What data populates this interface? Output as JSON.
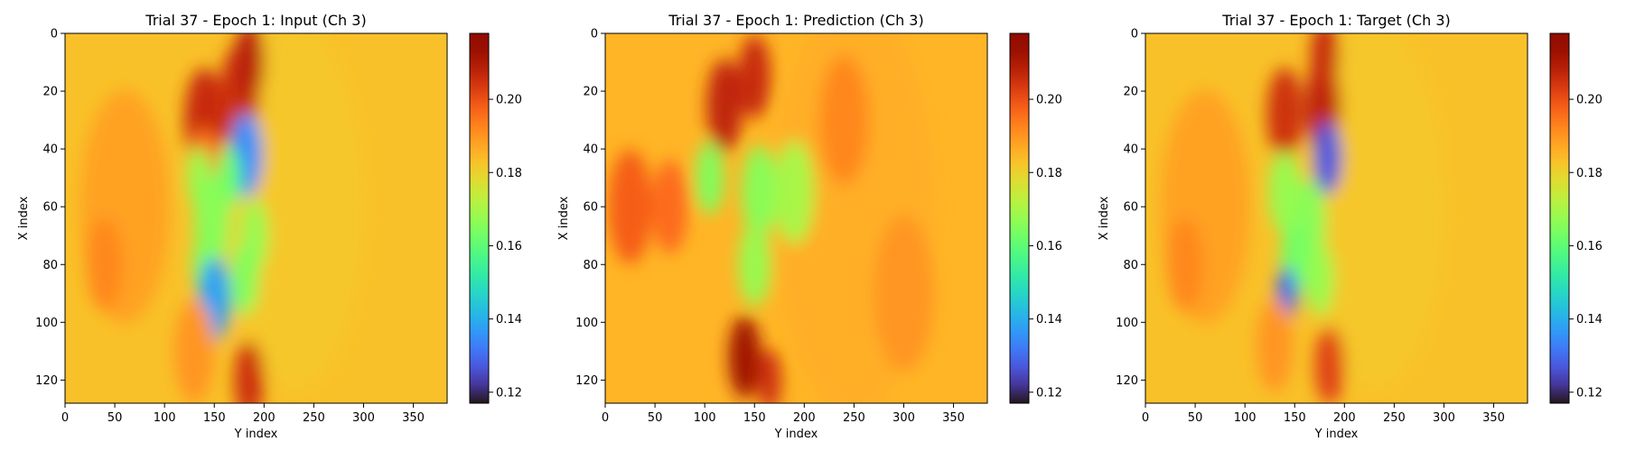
{
  "chart_data": [
    {
      "type": "heatmap",
      "title": "Trial 37 - Epoch 1: Input (Ch 3)",
      "xlabel": "Y index",
      "ylabel": "X index",
      "xlim": [
        0,
        384
      ],
      "ylim": [
        128,
        0
      ],
      "xticks": [
        0,
        50,
        100,
        150,
        200,
        250,
        300,
        350
      ],
      "yticks": [
        0,
        20,
        40,
        60,
        80,
        100,
        120
      ],
      "colormap": "turbo",
      "vmin": 0.117,
      "vmax": 0.218,
      "colorbar_ticks": [
        0.12,
        0.14,
        0.16,
        0.18,
        0.2
      ],
      "colorbar_tick_labels": [
        "0.12",
        "0.14",
        "0.16",
        "0.18",
        "0.20"
      ],
      "background_value": 0.183,
      "features": [
        {
          "x": 230,
          "y": 60,
          "r": 70,
          "value": 0.182
        },
        {
          "x": 60,
          "y": 60,
          "r": 45,
          "value": 0.188
        },
        {
          "x": 140,
          "y": 30,
          "r": 20,
          "value": 0.206
        },
        {
          "x": 175,
          "y": 22,
          "r": 20,
          "value": 0.205
        },
        {
          "x": 185,
          "y": 10,
          "r": 15,
          "value": 0.208
        },
        {
          "x": 140,
          "y": 45,
          "r": 14,
          "value": 0.195
        },
        {
          "x": 182,
          "y": 42,
          "r": 16,
          "value": 0.135
        },
        {
          "x": 135,
          "y": 50,
          "r": 12,
          "value": 0.168
        },
        {
          "x": 165,
          "y": 50,
          "r": 12,
          "value": 0.162
        },
        {
          "x": 148,
          "y": 65,
          "r": 18,
          "value": 0.166
        },
        {
          "x": 190,
          "y": 70,
          "r": 14,
          "value": 0.168
        },
        {
          "x": 140,
          "y": 80,
          "r": 12,
          "value": 0.165
        },
        {
          "x": 150,
          "y": 92,
          "r": 16,
          "value": 0.138
        },
        {
          "x": 180,
          "y": 85,
          "r": 14,
          "value": 0.165
        },
        {
          "x": 185,
          "y": 120,
          "r": 15,
          "value": 0.205
        },
        {
          "x": 40,
          "y": 80,
          "r": 18,
          "value": 0.192
        },
        {
          "x": 130,
          "y": 110,
          "r": 20,
          "value": 0.19
        }
      ]
    },
    {
      "type": "heatmap",
      "title": "Trial 37 - Epoch 1: Prediction (Ch 3)",
      "xlabel": "Y index",
      "ylabel": "X index",
      "xlim": [
        0,
        384
      ],
      "ylim": [
        128,
        0
      ],
      "xticks": [
        0,
        50,
        100,
        150,
        200,
        250,
        300,
        350
      ],
      "yticks": [
        0,
        20,
        40,
        60,
        80,
        100,
        120
      ],
      "colormap": "turbo",
      "vmin": 0.117,
      "vmax": 0.218,
      "colorbar_ticks": [
        0.12,
        0.14,
        0.16,
        0.18,
        0.2
      ],
      "colorbar_tick_labels": [
        "0.12",
        "0.14",
        "0.16",
        "0.18",
        "0.20"
      ],
      "background_value": 0.185,
      "features": [
        {
          "x": 250,
          "y": 60,
          "r": 80,
          "value": 0.186
        },
        {
          "x": 25,
          "y": 60,
          "r": 22,
          "value": 0.198
        },
        {
          "x": 65,
          "y": 60,
          "r": 18,
          "value": 0.196
        },
        {
          "x": 120,
          "y": 25,
          "r": 18,
          "value": 0.207
        },
        {
          "x": 150,
          "y": 15,
          "r": 16,
          "value": 0.206
        },
        {
          "x": 105,
          "y": 50,
          "r": 14,
          "value": 0.165
        },
        {
          "x": 155,
          "y": 55,
          "r": 18,
          "value": 0.166
        },
        {
          "x": 190,
          "y": 55,
          "r": 20,
          "value": 0.17
        },
        {
          "x": 150,
          "y": 80,
          "r": 16,
          "value": 0.168
        },
        {
          "x": 140,
          "y": 112,
          "r": 16,
          "value": 0.212
        },
        {
          "x": 165,
          "y": 120,
          "r": 12,
          "value": 0.205
        },
        {
          "x": 240,
          "y": 30,
          "r": 25,
          "value": 0.192
        },
        {
          "x": 300,
          "y": 90,
          "r": 30,
          "value": 0.19
        }
      ]
    },
    {
      "type": "heatmap",
      "title": "Trial 37 - Epoch 1: Target (Ch 3)",
      "xlabel": "Y index",
      "ylabel": "X index",
      "xlim": [
        0,
        384
      ],
      "ylim": [
        128,
        0
      ],
      "xticks": [
        0,
        50,
        100,
        150,
        200,
        250,
        300,
        350
      ],
      "yticks": [
        0,
        20,
        40,
        60,
        80,
        100,
        120
      ],
      "colormap": "turbo",
      "vmin": 0.117,
      "vmax": 0.218,
      "colorbar_ticks": [
        0.12,
        0.14,
        0.16,
        0.18,
        0.2
      ],
      "colorbar_tick_labels": [
        "0.12",
        "0.14",
        "0.16",
        "0.18",
        "0.20"
      ],
      "background_value": 0.183,
      "features": [
        {
          "x": 230,
          "y": 60,
          "r": 70,
          "value": 0.182
        },
        {
          "x": 60,
          "y": 60,
          "r": 45,
          "value": 0.188
        },
        {
          "x": 140,
          "y": 28,
          "r": 18,
          "value": 0.205
        },
        {
          "x": 178,
          "y": 25,
          "r": 18,
          "value": 0.207
        },
        {
          "x": 180,
          "y": 8,
          "r": 14,
          "value": 0.206
        },
        {
          "x": 183,
          "y": 43,
          "r": 14,
          "value": 0.127
        },
        {
          "x": 140,
          "y": 55,
          "r": 16,
          "value": 0.168
        },
        {
          "x": 165,
          "y": 65,
          "r": 16,
          "value": 0.166
        },
        {
          "x": 150,
          "y": 78,
          "r": 14,
          "value": 0.163
        },
        {
          "x": 142,
          "y": 90,
          "r": 10,
          "value": 0.13
        },
        {
          "x": 175,
          "y": 85,
          "r": 14,
          "value": 0.168
        },
        {
          "x": 185,
          "y": 115,
          "r": 15,
          "value": 0.202
        },
        {
          "x": 40,
          "y": 80,
          "r": 18,
          "value": 0.192
        },
        {
          "x": 130,
          "y": 108,
          "r": 18,
          "value": 0.19
        }
      ]
    }
  ]
}
